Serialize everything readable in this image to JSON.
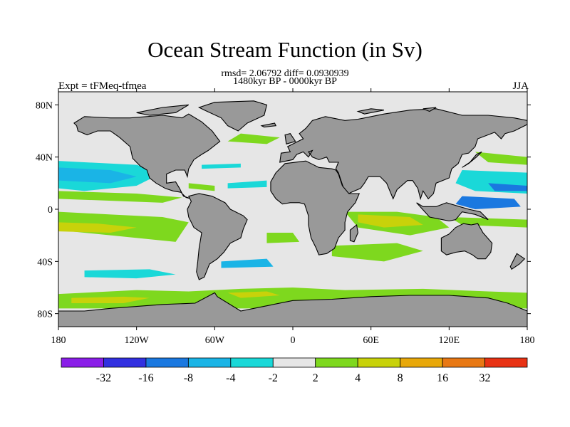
{
  "header": {
    "title": "Ocean Stream Function (in Sv)",
    "stats": "rmsd= 2.06792 diff= 0.0930939",
    "period": "1480kyr BP - 0000kyr BP",
    "experiment": "Expt = tFMeq-tfmea",
    "season": "JJA"
  },
  "map": {
    "projection": "cylindrical-equidistant",
    "lon_range": [
      -180,
      180
    ],
    "lat_range": [
      -90,
      90
    ],
    "lat_ticks": [
      {
        "value": 80,
        "label": "80N"
      },
      {
        "value": 40,
        "label": "40N"
      },
      {
        "value": 0,
        "label": "0"
      },
      {
        "value": -40,
        "label": "40S"
      },
      {
        "value": -80,
        "label": "80S"
      }
    ],
    "lon_ticks": [
      {
        "value": -180,
        "label": "180"
      },
      {
        "value": -120,
        "label": "120W"
      },
      {
        "value": -60,
        "label": "60W"
      },
      {
        "value": 0,
        "label": "0"
      },
      {
        "value": 60,
        "label": "60E"
      },
      {
        "value": 120,
        "label": "120E"
      },
      {
        "value": 180,
        "label": "180"
      }
    ],
    "colors": {
      "land": "#999999",
      "ocean_near_zero": "#e6e6e6",
      "coastline": "#000000"
    }
  },
  "colorbar": {
    "colors": [
      "#8a1ee8",
      "#3230e0",
      "#1a78e0",
      "#1ab4e6",
      "#1ad8d8",
      "#e6e6e6",
      "#7ed81e",
      "#c8d20a",
      "#e8a80a",
      "#e87814",
      "#e83214"
    ],
    "labels": [
      "-32",
      "-16",
      "-8",
      "-4",
      "-2",
      "2",
      "4",
      "8",
      "16",
      "32"
    ]
  }
}
